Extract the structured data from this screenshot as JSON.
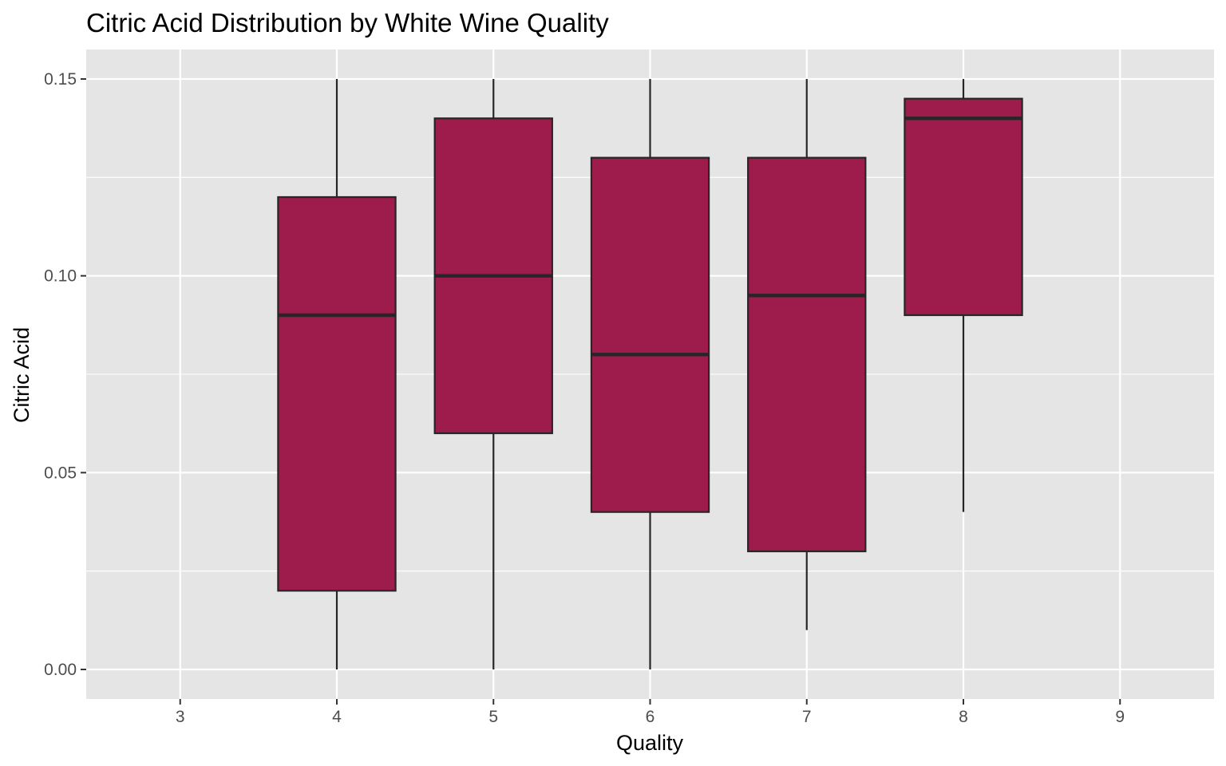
{
  "chart_data": {
    "type": "boxplot",
    "title": "Citric Acid Distribution by White Wine Quality",
    "xlabel": "Quality",
    "ylabel": "Citric Acid",
    "x_ticks": [
      "3",
      "4",
      "5",
      "6",
      "7",
      "8",
      "9"
    ],
    "y_ticks": [
      "0.00",
      "0.05",
      "0.10",
      "0.15"
    ],
    "xlim": [
      2.4,
      9.6
    ],
    "ylim": [
      -0.0075,
      0.1575
    ],
    "grid": true,
    "legend": "none",
    "colors": {
      "panel": "#e5e5e5",
      "grid": "#ffffff",
      "box_fill": "#9e1c4c",
      "box_outline": "#262626",
      "tick_text": "#4d4d4d",
      "tick_mark": "#333333"
    },
    "series": [
      {
        "boxes": [
          {
            "category": "4",
            "x": 4,
            "whisker_low": 0.0,
            "q1": 0.02,
            "median": 0.09,
            "q3": 0.12,
            "whisker_high": 0.15
          },
          {
            "category": "5",
            "x": 5,
            "whisker_low": 0.0,
            "q1": 0.06,
            "median": 0.1,
            "q3": 0.14,
            "whisker_high": 0.15
          },
          {
            "category": "6",
            "x": 6,
            "whisker_low": 0.0,
            "q1": 0.04,
            "median": 0.08,
            "q3": 0.13,
            "whisker_high": 0.15
          },
          {
            "category": "7",
            "x": 7,
            "whisker_low": 0.01,
            "q1": 0.03,
            "median": 0.095,
            "q3": 0.13,
            "whisker_high": 0.15
          },
          {
            "category": "8",
            "x": 8,
            "whisker_low": 0.04,
            "q1": 0.09,
            "median": 0.14,
            "q3": 0.145,
            "whisker_high": 0.15
          }
        ]
      }
    ]
  }
}
